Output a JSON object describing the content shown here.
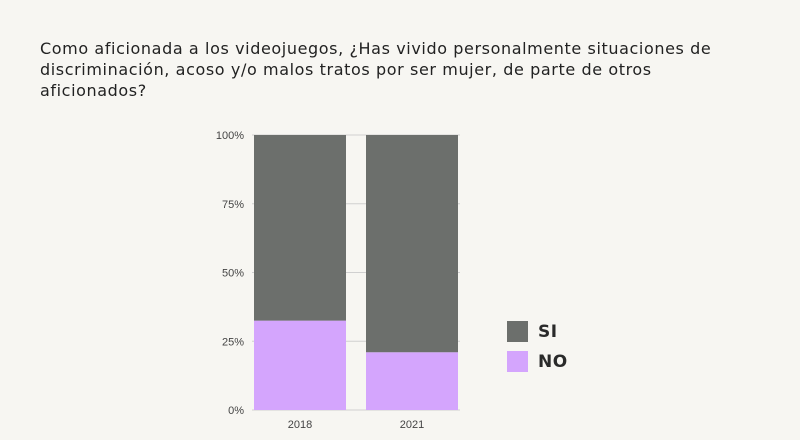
{
  "title": "Como aficionada a los videojuegos, ¿Has vivido personalmente situaciones de discriminación, acoso y/o malos tratos por ser mujer, de parte de otros aficionados?",
  "colors": {
    "SI": "#6c6f6c",
    "NO": "#d4a5fd",
    "grid": "#d0d0d0",
    "background": "#f7f6f2"
  },
  "legend": [
    {
      "label": "SI",
      "color": "#6c6f6c"
    },
    {
      "label": "NO",
      "color": "#d4a5fd"
    }
  ],
  "chart_data": {
    "type": "bar",
    "stacked": true,
    "categories": [
      "2018",
      "2021"
    ],
    "series": [
      {
        "name": "NO",
        "values": [
          32.5,
          21
        ]
      },
      {
        "name": "SI",
        "values": [
          67.5,
          79
        ]
      }
    ],
    "yticks": [
      "0%",
      "25%",
      "50%",
      "75%",
      "100%"
    ],
    "ylim": [
      0,
      100
    ],
    "grid": true,
    "legend_position": "right"
  }
}
